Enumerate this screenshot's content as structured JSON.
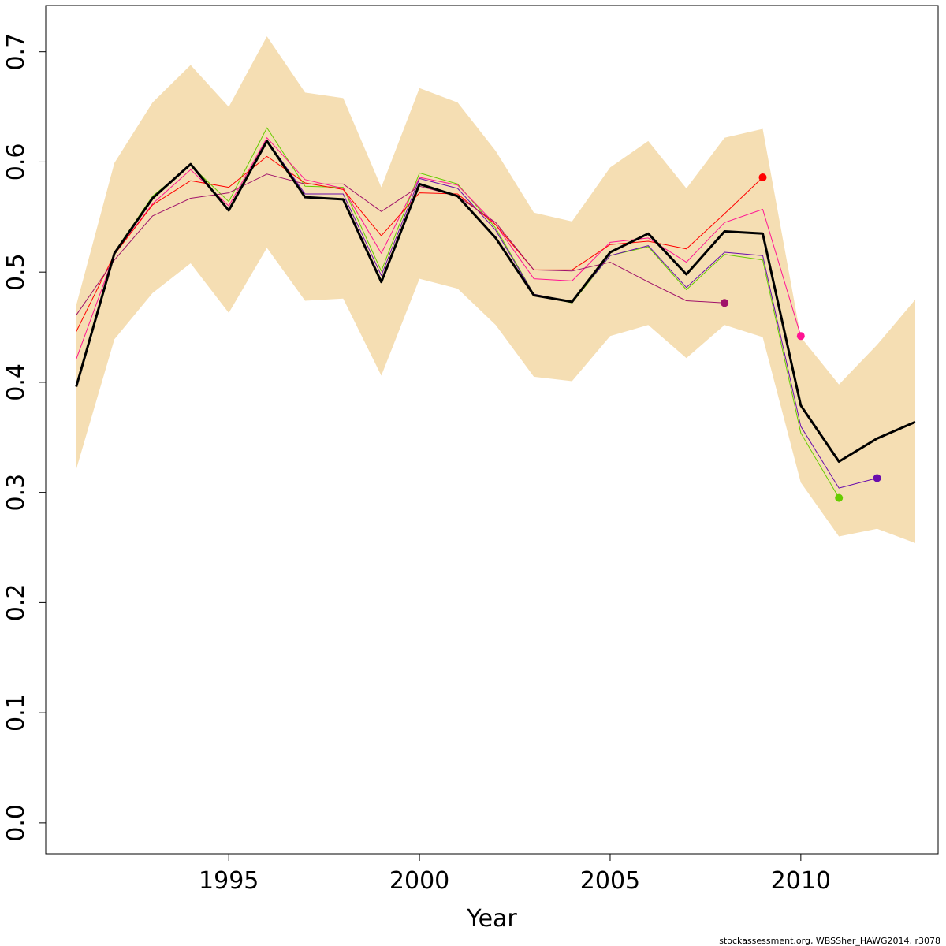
{
  "chart_data": {
    "type": "line",
    "title": "",
    "xlabel": "Year",
    "ylabel": "",
    "xlim": [
      1990.2,
      2013.6
    ],
    "ylim": [
      -0.028,
      0.742
    ],
    "x_ticks": [
      1995,
      2000,
      2005,
      2010
    ],
    "x_tick_labels": [
      "1995",
      "2000",
      "2005",
      "2010"
    ],
    "y_ticks": [
      0.0,
      0.1,
      0.2,
      0.3,
      0.4,
      0.5,
      0.6,
      0.7
    ],
    "y_tick_labels": [
      "0.0",
      "0.1",
      "0.2",
      "0.3",
      "0.4",
      "0.5",
      "0.6",
      "0.7"
    ],
    "grid": false,
    "legend": "none",
    "confidence_band": {
      "color": "#f5deb3",
      "x": [
        1991,
        1992,
        1993,
        1994,
        1995,
        1996,
        1997,
        1998,
        1999,
        2000,
        2001,
        2002,
        2003,
        2004,
        2005,
        2006,
        2007,
        2008,
        2009,
        2010,
        2011,
        2012,
        2013
      ],
      "lower": [
        0.321,
        0.439,
        0.481,
        0.508,
        0.463,
        0.522,
        0.474,
        0.476,
        0.406,
        0.494,
        0.485,
        0.452,
        0.405,
        0.401,
        0.442,
        0.452,
        0.422,
        0.452,
        0.441,
        0.309,
        0.26,
        0.267,
        0.254
      ],
      "upper": [
        0.47,
        0.599,
        0.654,
        0.688,
        0.65,
        0.714,
        0.663,
        0.658,
        0.577,
        0.667,
        0.654,
        0.61,
        0.554,
        0.546,
        0.595,
        0.619,
        0.576,
        0.622,
        0.63,
        0.441,
        0.398,
        0.434,
        0.475
      ]
    },
    "series": [
      {
        "color": "#000000",
        "line_width": 3,
        "end_marker": false,
        "x": [
          1991,
          1992,
          1993,
          1994,
          1995,
          1996,
          1997,
          1998,
          1999,
          2000,
          2001,
          2002,
          2003,
          2004,
          2005,
          2006,
          2007,
          2008,
          2009,
          2010,
          2011,
          2012,
          2013
        ],
        "y": [
          0.396,
          0.517,
          0.567,
          0.598,
          0.556,
          0.619,
          0.568,
          0.566,
          0.491,
          0.58,
          0.569,
          0.531,
          0.479,
          0.473,
          0.518,
          0.535,
          0.498,
          0.537,
          0.535,
          0.379,
          0.328,
          0.349,
          0.364
        ]
      },
      {
        "color": "#66cc00",
        "line_width": 1,
        "end_marker": true,
        "x": [
          1991,
          1992,
          1993,
          1994,
          1995,
          1996,
          1997,
          1998,
          1999,
          2000,
          2001,
          2002,
          2003,
          2004,
          2005,
          2006,
          2007,
          2008,
          2009,
          2010,
          2011
        ],
        "y": [
          0.398,
          0.518,
          0.569,
          0.597,
          0.564,
          0.631,
          0.578,
          0.577,
          0.501,
          0.59,
          0.58,
          0.54,
          0.48,
          0.472,
          0.515,
          0.523,
          0.484,
          0.516,
          0.511,
          0.354,
          0.295
        ]
      },
      {
        "color": "#6a0dad",
        "line_width": 1,
        "end_marker": true,
        "x": [
          1991,
          1992,
          1993,
          1994,
          1995,
          1996,
          1997,
          1998,
          1999,
          2000,
          2001,
          2002,
          2003,
          2004,
          2005,
          2006,
          2007,
          2008,
          2009,
          2010,
          2011,
          2012
        ],
        "y": [
          0.397,
          0.517,
          0.568,
          0.597,
          0.557,
          0.62,
          0.571,
          0.571,
          0.497,
          0.585,
          0.576,
          0.538,
          0.48,
          0.473,
          0.515,
          0.524,
          0.486,
          0.518,
          0.515,
          0.36,
          0.304,
          0.313
        ]
      },
      {
        "color": "#ff1493",
        "line_width": 1,
        "end_marker": true,
        "x": [
          1991,
          1992,
          1993,
          1994,
          1995,
          1996,
          1997,
          1998,
          1999,
          2000,
          2001,
          2002,
          2003,
          2004,
          2005,
          2006,
          2007,
          2008,
          2009,
          2010
        ],
        "y": [
          0.421,
          0.516,
          0.562,
          0.593,
          0.56,
          0.622,
          0.584,
          0.576,
          0.517,
          0.586,
          0.579,
          0.543,
          0.494,
          0.492,
          0.527,
          0.531,
          0.509,
          0.545,
          0.557,
          0.442
        ]
      },
      {
        "color": "#ff0000",
        "line_width": 1,
        "end_marker": true,
        "x": [
          1991,
          1992,
          1993,
          1994,
          1995,
          1996,
          1997,
          1998,
          1999,
          2000,
          2001,
          2002,
          2003,
          2004,
          2005,
          2006,
          2007,
          2008,
          2009
        ],
        "y": [
          0.446,
          0.516,
          0.561,
          0.583,
          0.577,
          0.605,
          0.581,
          0.575,
          0.533,
          0.572,
          0.571,
          0.543,
          0.502,
          0.502,
          0.525,
          0.528,
          0.521,
          0.553,
          0.586
        ]
      },
      {
        "color": "#a0116a",
        "line_width": 1,
        "end_marker": true,
        "x": [
          1991,
          1992,
          1993,
          1994,
          1995,
          1996,
          1997,
          1998,
          1999,
          2000,
          2001,
          2002,
          2003,
          2004,
          2005,
          2006,
          2007,
          2008
        ],
        "y": [
          0.461,
          0.511,
          0.551,
          0.567,
          0.572,
          0.589,
          0.58,
          0.58,
          0.555,
          0.578,
          0.569,
          0.545,
          0.502,
          0.501,
          0.509,
          0.491,
          0.474,
          0.472
        ]
      }
    ]
  },
  "footer": {
    "credit": "stockassessment.org, WBSSher_HAWG2014, r3078"
  }
}
